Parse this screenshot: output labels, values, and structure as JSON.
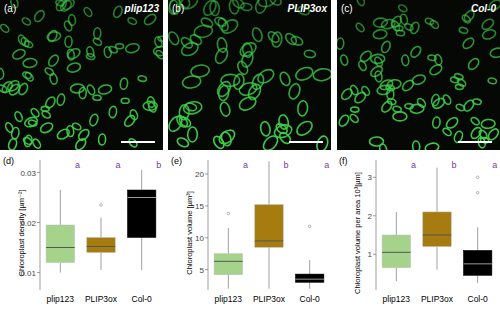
{
  "images": [
    {
      "label": "(a)",
      "title": "plip123"
    },
    {
      "label": "(b)",
      "title": "PLIP3ox"
    },
    {
      "label": "(c)",
      "title": "Col-0"
    }
  ],
  "chart_data": [
    {
      "type": "box",
      "title": "(d)",
      "y_label": "Chloroplast density [µm⁻²]",
      "categories": [
        "plip123",
        "PLIP3ox",
        "Col-0"
      ],
      "colors": [
        "#a6d38c",
        "#a67c10",
        "#000000"
      ],
      "ylim": [
        0.0065,
        0.0325
      ],
      "yticks": [
        0.01,
        0.02,
        0.03
      ],
      "boxes": [
        {
          "min": 0.01,
          "q1": 0.012,
          "median": 0.015,
          "q3": 0.0195,
          "max": 0.0265,
          "outliers": []
        },
        {
          "min": 0.0105,
          "q1": 0.014,
          "median": 0.0152,
          "q3": 0.017,
          "max": 0.021,
          "outliers": [
            0.0235
          ]
        },
        {
          "min": 0.0105,
          "q1": 0.017,
          "median": 0.025,
          "q3": 0.0265,
          "max": 0.0305,
          "outliers": []
        }
      ],
      "letters": [
        "a",
        "a",
        "b"
      ]
    },
    {
      "type": "box",
      "title": "(e)",
      "y_label": "Chloroplast volume [µm³]",
      "categories": [
        "plip123",
        "PLIP3ox",
        "Col-0"
      ],
      "colors": [
        "#a6d38c",
        "#a67c10",
        "#000000"
      ],
      "ylim": [
        1.8,
        22.2
      ],
      "yticks": [
        5,
        10,
        15,
        20
      ],
      "boxes": [
        {
          "min": 2,
          "q1": 4.2,
          "median": 6.3,
          "q3": 7.5,
          "max": 11.5,
          "outliers": [
            13.8
          ]
        },
        {
          "min": 2,
          "q1": 8.5,
          "median": 9.5,
          "q3": 15.2,
          "max": 22,
          "outliers": []
        },
        {
          "min": 2,
          "q1": 3,
          "median": 3.5,
          "q3": 4.3,
          "max": 6.5,
          "outliers": [
            11.8
          ]
        }
      ],
      "letters": [
        "a",
        "b",
        "a"
      ]
    },
    {
      "type": "box",
      "title": "(f)",
      "y_label": "Chloroplast volume per area 10³[µm]",
      "categories": [
        "plip123",
        "PLIP3ox",
        "Col-0"
      ],
      "colors": [
        "#a6d38c",
        "#a67c10",
        "#000000"
      ],
      "ylim": [
        0.07,
        3.45
      ],
      "yticks": [
        1,
        2,
        3
      ],
      "boxes": [
        {
          "min": 0.3,
          "q1": 0.65,
          "median": 1.05,
          "q3": 1.5,
          "max": 2.1,
          "outliers": []
        },
        {
          "min": 0.6,
          "q1": 1.2,
          "median": 1.5,
          "q3": 2.1,
          "max": 3.25,
          "outliers": []
        },
        {
          "min": 0.25,
          "q1": 0.45,
          "median": 0.75,
          "q3": 1.1,
          "max": 1.7,
          "outliers": [
            2.6,
            3.0
          ]
        }
      ],
      "letters": [
        "a",
        "b",
        "a"
      ]
    }
  ]
}
